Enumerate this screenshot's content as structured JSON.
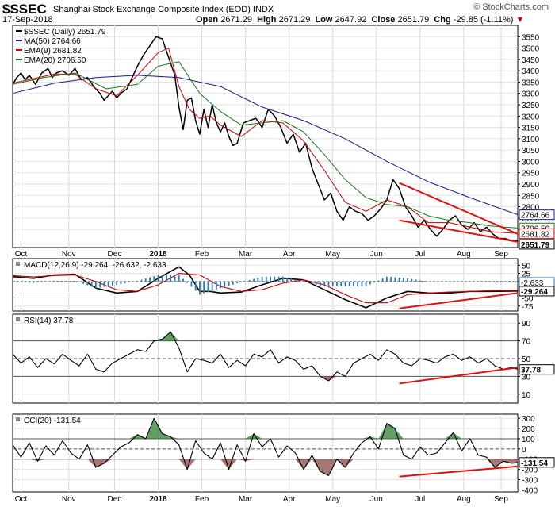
{
  "header": {
    "symbol": "$SSEC",
    "name": "Shanghai Stock Exchange Composite Index (EOD)",
    "exchange": "INDX",
    "date": "17-Sep-2018",
    "open_label": "Open",
    "open": "2671.29",
    "high_label": "High",
    "high": "2671.29",
    "low_label": "Low",
    "low": "2647.92",
    "close_label": "Close",
    "close": "2651.79",
    "chg_label": "Chg",
    "chg": "-29.85 (-1.11%)",
    "watermark": "© StockCharts.com"
  },
  "colors": {
    "price": "#000000",
    "ma50": "#1a1a8c",
    "ema9": "#cc0000",
    "ema20": "#1e7a1e",
    "trendline": "#e01010",
    "hist": "#2a7ab0",
    "rsi_fill": "#2e7d32",
    "cci_pos_fill": "#2e7d32",
    "cci_neg_fill": "#8a4a4a"
  },
  "months": [
    "Oct",
    "Nov",
    "Dec",
    "2018",
    "Feb",
    "Mar",
    "Apr",
    "May",
    "Jun",
    "Jul",
    "Aug",
    "Sep"
  ],
  "chart_data": [
    {
      "type": "line",
      "panel": "price",
      "legend": [
        "$SSEC (Daily) 2651.79",
        "MA(50) 2764.66",
        "EMA(9) 2681.82",
        "EMA(20) 2706.50"
      ],
      "ylim": [
        2620,
        3600
      ],
      "yticks": [
        2700,
        2750,
        2800,
        2850,
        2900,
        2950,
        3000,
        3050,
        3100,
        3150,
        3200,
        3250,
        3300,
        3350,
        3400,
        3450,
        3500,
        3550
      ],
      "value_tags": [
        "2764.66",
        "2706.50",
        "2681.82",
        "2651.79"
      ],
      "series": [
        {
          "name": "$SSEC (Daily)",
          "x": [
            0,
            2,
            4,
            6,
            8,
            11,
            14,
            17,
            19,
            21,
            24,
            27,
            30,
            33,
            36,
            39,
            42,
            44,
            46,
            48,
            50,
            52,
            55,
            58,
            60,
            63,
            66,
            69,
            72,
            75,
            78,
            80,
            82,
            84,
            86,
            88,
            90,
            92,
            94,
            96,
            98,
            100,
            102,
            104,
            106,
            108,
            111,
            114,
            117,
            120,
            123,
            126,
            129,
            132,
            135,
            138,
            141,
            144,
            147,
            150,
            153,
            156,
            159,
            162,
            165,
            168,
            171,
            174,
            177,
            180,
            183,
            186,
            189,
            192,
            195,
            198,
            201,
            204,
            207,
            210,
            213,
            216,
            219,
            222,
            225,
            228,
            231,
            234,
            237,
            240,
            243
          ],
          "values": [
            3340,
            3370,
            3390,
            3360,
            3380,
            3340,
            3390,
            3410,
            3370,
            3390,
            3400,
            3380,
            3410,
            3360,
            3370,
            3330,
            3300,
            3270,
            3290,
            3310,
            3280,
            3300,
            3320,
            3380,
            3420,
            3470,
            3510,
            3550,
            3540,
            3460,
            3380,
            3240,
            3140,
            3270,
            3280,
            3180,
            3120,
            3230,
            3150,
            3250,
            3170,
            3130,
            3170,
            3110,
            3070,
            3080,
            3170,
            3180,
            3190,
            3150,
            3230,
            3200,
            3150,
            3080,
            3120,
            3040,
            3080,
            2970,
            2900,
            2830,
            2860,
            2780,
            2740,
            2800,
            2780,
            2770,
            2740,
            2760,
            2790,
            2830,
            2920,
            2880,
            2800,
            2760,
            2710,
            2740,
            2700,
            2670,
            2700,
            2740,
            2760,
            2720,
            2700,
            2730,
            2690,
            2710,
            2680,
            2660,
            2660,
            2650,
            2652
          ]
        },
        {
          "name": "MA(50)",
          "x": [
            0,
            20,
            40,
            60,
            80,
            100,
            120,
            140,
            160,
            180,
            200,
            220,
            243
          ],
          "values": [
            3300,
            3345,
            3370,
            3380,
            3370,
            3330,
            3240,
            3180,
            3100,
            3000,
            2910,
            2840,
            2765
          ]
        },
        {
          "name": "EMA(9)",
          "x": [
            0,
            10,
            20,
            30,
            40,
            50,
            60,
            70,
            75,
            80,
            85,
            90,
            95,
            100,
            110,
            120,
            130,
            140,
            150,
            160,
            170,
            180,
            190,
            200,
            210,
            220,
            230,
            243
          ],
          "values": [
            3345,
            3365,
            3385,
            3385,
            3320,
            3290,
            3380,
            3480,
            3500,
            3330,
            3230,
            3190,
            3200,
            3160,
            3110,
            3180,
            3170,
            3090,
            2960,
            2820,
            2780,
            2830,
            2800,
            2730,
            2730,
            2710,
            2690,
            2682
          ]
        },
        {
          "name": "EMA(20)",
          "x": [
            0,
            15,
            30,
            45,
            60,
            70,
            80,
            90,
            100,
            110,
            120,
            130,
            140,
            150,
            160,
            170,
            180,
            190,
            200,
            210,
            220,
            230,
            243
          ],
          "values": [
            3340,
            3370,
            3390,
            3320,
            3340,
            3420,
            3440,
            3300,
            3220,
            3160,
            3170,
            3180,
            3130,
            3030,
            2920,
            2840,
            2810,
            2800,
            2760,
            2740,
            2730,
            2715,
            2706
          ]
        }
      ],
      "annotations": [
        {
          "kind": "trendline",
          "x": [
            186,
            243
          ],
          "values": [
            2905,
            2680
          ]
        },
        {
          "kind": "trendline",
          "x": [
            186,
            243
          ],
          "values": [
            2740,
            2645
          ]
        }
      ]
    },
    {
      "type": "line",
      "panel": "macd",
      "legend": [
        "MACD(12,26,9) -29.264, -26.632, -2.633"
      ],
      "ylim": [
        -90,
        70
      ],
      "yticks": [
        50,
        25,
        0,
        -50,
        -75
      ],
      "value_tags": [
        "-2.633",
        "-29.264"
      ],
      "series": [
        {
          "name": "MACD",
          "x": [
            0,
            10,
            20,
            30,
            40,
            50,
            60,
            70,
            80,
            85,
            90,
            95,
            100,
            110,
            120,
            130,
            140,
            150,
            160,
            170,
            180,
            190,
            200,
            210,
            220,
            230,
            243
          ],
          "values": [
            15,
            10,
            20,
            22,
            -20,
            -35,
            -30,
            10,
            45,
            20,
            -30,
            -30,
            -35,
            -32,
            -10,
            10,
            5,
            -25,
            -55,
            -80,
            -50,
            -30,
            -35,
            -35,
            -30,
            -30,
            -29
          ]
        },
        {
          "name": "Signal",
          "x": [
            0,
            10,
            20,
            30,
            40,
            50,
            60,
            70,
            80,
            90,
            100,
            110,
            120,
            130,
            140,
            150,
            160,
            170,
            180,
            190,
            200,
            210,
            220,
            230,
            243
          ],
          "values": [
            18,
            14,
            18,
            20,
            0,
            -25,
            -30,
            -10,
            25,
            20,
            -15,
            -30,
            -25,
            -5,
            5,
            -10,
            -40,
            -65,
            -65,
            -40,
            -35,
            -32,
            -30,
            -28,
            -27
          ]
        },
        {
          "name": "Histogram",
          "x": [
            0,
            10,
            20,
            30,
            40,
            50,
            60,
            70,
            80,
            90,
            100,
            110,
            120,
            130,
            140,
            150,
            160,
            170,
            180,
            190,
            200,
            210,
            220,
            230,
            243
          ],
          "values": [
            -2,
            -4,
            2,
            2,
            -20,
            -10,
            2,
            20,
            20,
            -40,
            -20,
            -2,
            15,
            15,
            0,
            -15,
            -15,
            -15,
            15,
            10,
            0,
            0,
            0,
            -2,
            -3
          ]
        }
      ],
      "annotations": [
        {
          "kind": "trendline",
          "x": [
            186,
            243
          ],
          "values": [
            -82,
            -35
          ]
        }
      ]
    },
    {
      "type": "line",
      "panel": "rsi",
      "legend": [
        "RSI(14) 37.78"
      ],
      "ylim": [
        0,
        100
      ],
      "yticks": [
        90,
        70,
        50,
        30,
        10
      ],
      "value_tags": [
        "37.78"
      ],
      "series": [
        {
          "name": "RSI(14)",
          "x": [
            0,
            4,
            8,
            12,
            16,
            20,
            24,
            28,
            32,
            36,
            40,
            44,
            48,
            52,
            56,
            60,
            64,
            68,
            72,
            76,
            80,
            84,
            88,
            92,
            96,
            100,
            104,
            108,
            112,
            116,
            120,
            124,
            128,
            132,
            136,
            140,
            144,
            148,
            152,
            156,
            160,
            164,
            168,
            172,
            176,
            180,
            184,
            188,
            192,
            196,
            200,
            204,
            208,
            212,
            216,
            220,
            224,
            228,
            232,
            236,
            240,
            243
          ],
          "values": [
            55,
            45,
            52,
            40,
            50,
            44,
            55,
            48,
            42,
            55,
            38,
            35,
            45,
            50,
            55,
            60,
            58,
            70,
            72,
            80,
            62,
            35,
            50,
            48,
            45,
            55,
            40,
            48,
            42,
            55,
            52,
            60,
            45,
            52,
            48,
            38,
            42,
            30,
            25,
            35,
            30,
            45,
            50,
            55,
            48,
            60,
            55,
            45,
            42,
            50,
            48,
            45,
            52,
            55,
            48,
            52,
            45,
            50,
            42,
            38,
            40,
            38
          ]
        }
      ],
      "annotations": [
        {
          "kind": "trendline",
          "x": [
            186,
            243
          ],
          "values": [
            22,
            40
          ]
        }
      ]
    },
    {
      "type": "line",
      "panel": "cci",
      "legend": [
        "CCI(20) -131.54"
      ],
      "ylim": [
        -420,
        340
      ],
      "yticks": [
        300,
        200,
        100,
        0,
        -100,
        -200,
        -300,
        -400
      ],
      "value_tags": [
        "-131.54"
      ],
      "series": [
        {
          "name": "CCI(20)",
          "x": [
            0,
            4,
            8,
            12,
            16,
            20,
            24,
            28,
            32,
            36,
            40,
            44,
            48,
            52,
            56,
            60,
            64,
            68,
            72,
            76,
            80,
            84,
            88,
            92,
            96,
            100,
            104,
            108,
            112,
            116,
            120,
            124,
            128,
            132,
            136,
            140,
            144,
            148,
            152,
            156,
            160,
            164,
            168,
            172,
            176,
            180,
            184,
            188,
            192,
            196,
            200,
            204,
            208,
            212,
            216,
            220,
            224,
            228,
            232,
            236,
            240,
            243
          ],
          "values": [
            40,
            -80,
            60,
            -120,
            30,
            -60,
            80,
            -40,
            -100,
            40,
            -180,
            -140,
            -60,
            20,
            60,
            140,
            100,
            300,
            150,
            120,
            40,
            -200,
            80,
            -40,
            -100,
            60,
            -200,
            40,
            -120,
            150,
            20,
            100,
            -80,
            30,
            -40,
            -200,
            -60,
            -220,
            -260,
            -100,
            -180,
            -40,
            60,
            120,
            0,
            250,
            200,
            -60,
            -100,
            20,
            -60,
            -40,
            60,
            160,
            -20,
            100,
            -60,
            -80,
            -180,
            -120,
            -140,
            -132
          ]
        }
      ],
      "annotations": [
        {
          "kind": "trendline",
          "x": [
            186,
            243
          ],
          "values": [
            -270,
            -170
          ]
        }
      ]
    }
  ]
}
